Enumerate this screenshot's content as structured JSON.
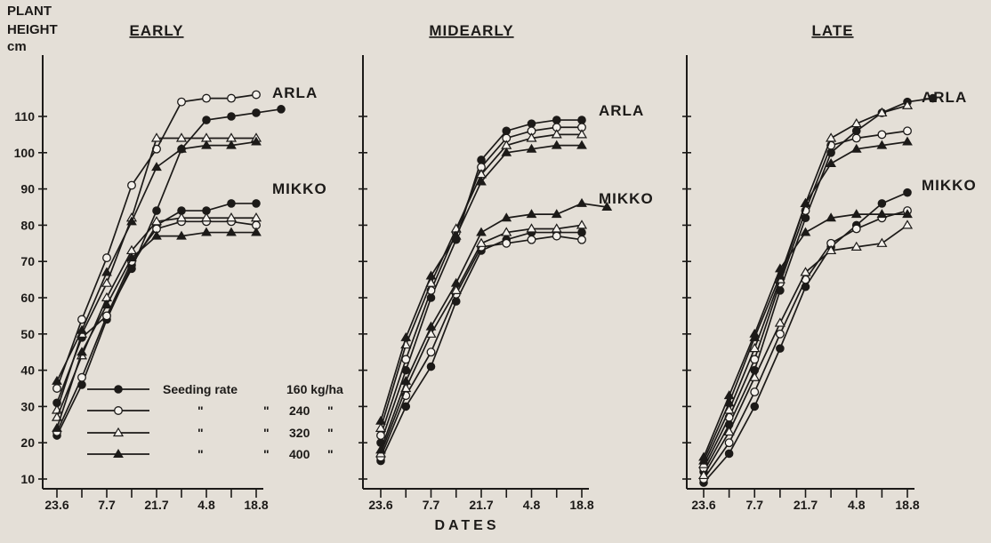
{
  "chart_data": {
    "type": "line",
    "ylabel_lines": [
      "PLANT",
      "HEIGHT",
      "cm"
    ],
    "xlabel": "DATES",
    "ylim": [
      5,
      120
    ],
    "yticks": [
      10,
      20,
      30,
      40,
      50,
      60,
      70,
      80,
      90,
      100,
      110
    ],
    "xtick_labels": [
      "23.6",
      "7.7",
      "21.7",
      "4.8",
      "18.8"
    ],
    "grid": false,
    "legend": {
      "title": "Seeding rate",
      "entries": [
        {
          "rate": "160 kg/ha",
          "marker": "filled-circle"
        },
        {
          "rate": "240",
          "marker": "open-circle"
        },
        {
          "rate": "320",
          "marker": "open-triangle"
        },
        {
          "rate": "400",
          "marker": "filled-triangle"
        }
      ],
      "ditto": "\""
    },
    "panels": [
      {
        "title": "EARLY",
        "groups": [
          {
            "name": "ARLA",
            "series": [
              {
                "rate": "160",
                "x": [
                  0,
                  0.5,
                  1,
                  1.5,
                  2,
                  2.5,
                  3,
                  3.5,
                  4,
                  4.5,
                  5
                ],
                "y": [
                  31,
                  49,
                  55,
                  68,
                  84,
                  101,
                  109,
                  110,
                  111,
                  112,
                  null
                ]
              },
              {
                "rate": "240",
                "x": [
                  0,
                  0.5,
                  1,
                  1.5,
                  2,
                  2.5,
                  3,
                  3.5,
                  4,
                  4.5,
                  5
                ],
                "y": [
                  35,
                  54,
                  71,
                  91,
                  101,
                  114,
                  115,
                  115,
                  116,
                  null,
                  null
                ]
              },
              {
                "rate": "320",
                "x": [
                  0,
                  0.5,
                  1,
                  1.5,
                  2,
                  2.5,
                  3,
                  3.5,
                  4,
                  4.5,
                  5
                ],
                "y": [
                  29,
                  50,
                  64,
                  82,
                  104,
                  104,
                  104,
                  104,
                  104,
                  null,
                  null
                ]
              },
              {
                "rate": "400",
                "x": [
                  0,
                  0.5,
                  1,
                  1.5,
                  2,
                  2.5,
                  3,
                  3.5,
                  4,
                  4.5,
                  5
                ],
                "y": [
                  37,
                  51,
                  67,
                  81,
                  96,
                  101,
                  102,
                  102,
                  103,
                  null,
                  null
                ]
              }
            ]
          },
          {
            "name": "MIKKO",
            "series": [
              {
                "rate": "160",
                "x": [
                  0,
                  0.5,
                  1,
                  1.5,
                  2,
                  2.5,
                  3,
                  3.5,
                  4,
                  4.5,
                  5
                ],
                "y": [
                  22,
                  36,
                  54,
                  69,
                  80,
                  84,
                  84,
                  86,
                  86,
                  null,
                  null
                ]
              },
              {
                "rate": "240",
                "x": [
                  0,
                  0.5,
                  1,
                  1.5,
                  2,
                  2.5,
                  3,
                  3.5,
                  4,
                  4.5,
                  5
                ],
                "y": [
                  23,
                  38,
                  55,
                  70,
                  79,
                  81,
                  81,
                  81,
                  80,
                  null,
                  null
                ]
              },
              {
                "rate": "320",
                "x": [
                  0,
                  0.5,
                  1,
                  1.5,
                  2,
                  2.5,
                  3,
                  3.5,
                  4,
                  4.5,
                  5
                ],
                "y": [
                  27,
                  44,
                  60,
                  73,
                  81,
                  82,
                  82,
                  82,
                  82,
                  null,
                  null
                ]
              },
              {
                "rate": "400",
                "x": [
                  0,
                  0.5,
                  1,
                  1.5,
                  2,
                  2.5,
                  3,
                  3.5,
                  4,
                  4.5,
                  5
                ],
                "y": [
                  24,
                  45,
                  58,
                  71,
                  77,
                  77,
                  78,
                  78,
                  78,
                  null,
                  null
                ]
              }
            ]
          }
        ]
      },
      {
        "title": "MIDEARLY",
        "groups": [
          {
            "name": "ARLA",
            "series": [
              {
                "rate": "160",
                "x": [
                  0,
                  0.5,
                  1,
                  1.5,
                  2,
                  2.5,
                  3,
                  3.5,
                  4,
                  4.5,
                  5
                ],
                "y": [
                  20,
                  40,
                  60,
                  76,
                  98,
                  106,
                  108,
                  109,
                  109,
                  null,
                  null
                ]
              },
              {
                "rate": "240",
                "x": [
                  0,
                  0.5,
                  1,
                  1.5,
                  2,
                  2.5,
                  3,
                  3.5,
                  4,
                  4.5,
                  5
                ],
                "y": [
                  22,
                  43,
                  62,
                  78,
                  96,
                  104,
                  106,
                  107,
                  107,
                  null,
                  null
                ]
              },
              {
                "rate": "320",
                "x": [
                  0,
                  0.5,
                  1,
                  1.5,
                  2,
                  2.5,
                  3,
                  3.5,
                  4,
                  4.5,
                  5
                ],
                "y": [
                  24,
                  47,
                  64,
                  79,
                  94,
                  102,
                  104,
                  105,
                  105,
                  null,
                  null
                ]
              },
              {
                "rate": "400",
                "x": [
                  0,
                  0.5,
                  1,
                  1.5,
                  2,
                  2.5,
                  3,
                  3.5,
                  4,
                  4.5,
                  5
                ],
                "y": [
                  26,
                  49,
                  66,
                  77,
                  92,
                  100,
                  101,
                  102,
                  102,
                  null,
                  null
                ]
              }
            ]
          },
          {
            "name": "MIKKO",
            "series": [
              {
                "rate": "160",
                "x": [
                  0,
                  0.5,
                  1,
                  1.5,
                  2,
                  2.5,
                  3,
                  3.5,
                  4,
                  4.5,
                  5
                ],
                "y": [
                  15,
                  30,
                  41,
                  59,
                  73,
                  76,
                  78,
                  78,
                  78,
                  null,
                  null
                ]
              },
              {
                "rate": "240",
                "x": [
                  0,
                  0.5,
                  1,
                  1.5,
                  2,
                  2.5,
                  3,
                  3.5,
                  4,
                  4.5,
                  5
                ],
                "y": [
                  16,
                  33,
                  45,
                  61,
                  74,
                  75,
                  76,
                  77,
                  76,
                  null,
                  null
                ]
              },
              {
                "rate": "320",
                "x": [
                  0,
                  0.5,
                  1,
                  1.5,
                  2,
                  2.5,
                  3,
                  3.5,
                  4,
                  4.5,
                  5
                ],
                "y": [
                  17,
                  35,
                  50,
                  62,
                  75,
                  78,
                  79,
                  79,
                  80,
                  null,
                  null
                ]
              },
              {
                "rate": "400",
                "x": [
                  0,
                  0.5,
                  1,
                  1.5,
                  2,
                  2.5,
                  3,
                  3.5,
                  4,
                  4.5,
                  5
                ],
                "y": [
                  18,
                  37,
                  52,
                  64,
                  78,
                  82,
                  83,
                  83,
                  86,
                  85,
                  null
                ]
              }
            ]
          }
        ]
      },
      {
        "title": "LATE",
        "groups": [
          {
            "name": "ARLA",
            "series": [
              {
                "rate": "160",
                "x": [
                  0,
                  0.5,
                  1,
                  1.5,
                  2,
                  2.5,
                  3,
                  3.5,
                  4,
                  4.5,
                  5
                ],
                "y": [
                  12,
                  25,
                  40,
                  62,
                  82,
                  100,
                  106,
                  111,
                  114,
                  115,
                  null
                ]
              },
              {
                "rate": "240",
                "x": [
                  0,
                  0.5,
                  1,
                  1.5,
                  2,
                  2.5,
                  3,
                  3.5,
                  4,
                  4.5,
                  5
                ],
                "y": [
                  13,
                  27,
                  43,
                  64,
                  84,
                  102,
                  104,
                  105,
                  106,
                  null,
                  null
                ]
              },
              {
                "rate": "320",
                "x": [
                  0,
                  0.5,
                  1,
                  1.5,
                  2,
                  2.5,
                  3,
                  3.5,
                  4,
                  4.5,
                  5
                ],
                "y": [
                  14,
                  29,
                  46,
                  65,
                  86,
                  104,
                  108,
                  111,
                  113,
                  null,
                  null
                ]
              },
              {
                "rate": "400",
                "x": [
                  0,
                  0.5,
                  1,
                  1.5,
                  2,
                  2.5,
                  3,
                  3.5,
                  4,
                  4.5,
                  5
                ],
                "y": [
                  15,
                  31,
                  49,
                  66,
                  86,
                  97,
                  101,
                  102,
                  103,
                  null,
                  null
                ]
              }
            ]
          },
          {
            "name": "MIKKO",
            "series": [
              {
                "rate": "160",
                "x": [
                  0,
                  0.5,
                  1,
                  1.5,
                  2,
                  2.5,
                  3,
                  3.5,
                  4,
                  4.5,
                  5
                ],
                "y": [
                  9,
                  17,
                  30,
                  46,
                  63,
                  74,
                  80,
                  86,
                  89,
                  null,
                  null
                ]
              },
              {
                "rate": "240",
                "x": [
                  0,
                  0.5,
                  1,
                  1.5,
                  2,
                  2.5,
                  3,
                  3.5,
                  4,
                  4.5,
                  5
                ],
                "y": [
                  10,
                  20,
                  34,
                  50,
                  65,
                  75,
                  79,
                  82,
                  84,
                  null,
                  null
                ]
              },
              {
                "rate": "320",
                "x": [
                  0,
                  0.5,
                  1,
                  1.5,
                  2,
                  2.5,
                  3,
                  3.5,
                  4,
                  4.5,
                  5
                ],
                "y": [
                  11,
                  23,
                  38,
                  53,
                  67,
                  73,
                  74,
                  75,
                  80,
                  null,
                  null
                ]
              },
              {
                "rate": "400",
                "x": [
                  0,
                  0.5,
                  1,
                  1.5,
                  2,
                  2.5,
                  3,
                  3.5,
                  4,
                  4.5,
                  5
                ],
                "y": [
                  16,
                  33,
                  50,
                  68,
                  78,
                  82,
                  83,
                  83,
                  83,
                  null,
                  null
                ]
              }
            ]
          }
        ]
      }
    ]
  }
}
